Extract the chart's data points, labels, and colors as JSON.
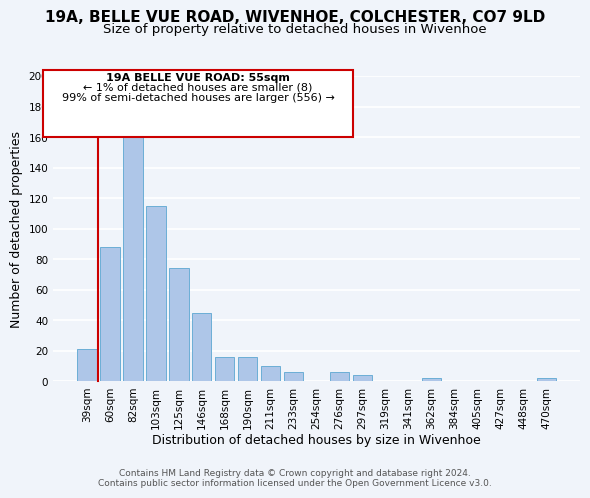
{
  "title": "19A, BELLE VUE ROAD, WIVENHOE, COLCHESTER, CO7 9LD",
  "subtitle": "Size of property relative to detached houses in Wivenhoe",
  "xlabel": "Distribution of detached houses by size in Wivenhoe",
  "ylabel": "Number of detached properties",
  "bar_labels": [
    "39sqm",
    "60sqm",
    "82sqm",
    "103sqm",
    "125sqm",
    "146sqm",
    "168sqm",
    "190sqm",
    "211sqm",
    "233sqm",
    "254sqm",
    "276sqm",
    "297sqm",
    "319sqm",
    "341sqm",
    "362sqm",
    "384sqm",
    "405sqm",
    "427sqm",
    "448sqm",
    "470sqm"
  ],
  "bar_values": [
    21,
    88,
    166,
    115,
    74,
    45,
    16,
    16,
    10,
    6,
    0,
    6,
    4,
    0,
    0,
    2,
    0,
    0,
    0,
    0,
    2
  ],
  "bar_color": "#aec6e8",
  "bar_edge_color": "#6baed6",
  "ylim": [
    0,
    200
  ],
  "yticks": [
    0,
    20,
    40,
    60,
    80,
    100,
    120,
    140,
    160,
    180,
    200
  ],
  "annotation_title": "19A BELLE VUE ROAD: 55sqm",
  "annotation_line1": "← 1% of detached houses are smaller (8)",
  "annotation_line2": "99% of semi-detached houses are larger (556) →",
  "annotation_box_color": "#ffffff",
  "annotation_border_color": "#cc0000",
  "red_line_color": "#cc0000",
  "footer1": "Contains HM Land Registry data © Crown copyright and database right 2024.",
  "footer2": "Contains public sector information licensed under the Open Government Licence v3.0.",
  "bg_color": "#f0f4fa",
  "grid_color": "#ffffff",
  "title_fontsize": 11,
  "subtitle_fontsize": 9.5,
  "axis_label_fontsize": 9,
  "tick_fontsize": 7.5,
  "annotation_fontsize": 8,
  "footer_fontsize": 6.5
}
